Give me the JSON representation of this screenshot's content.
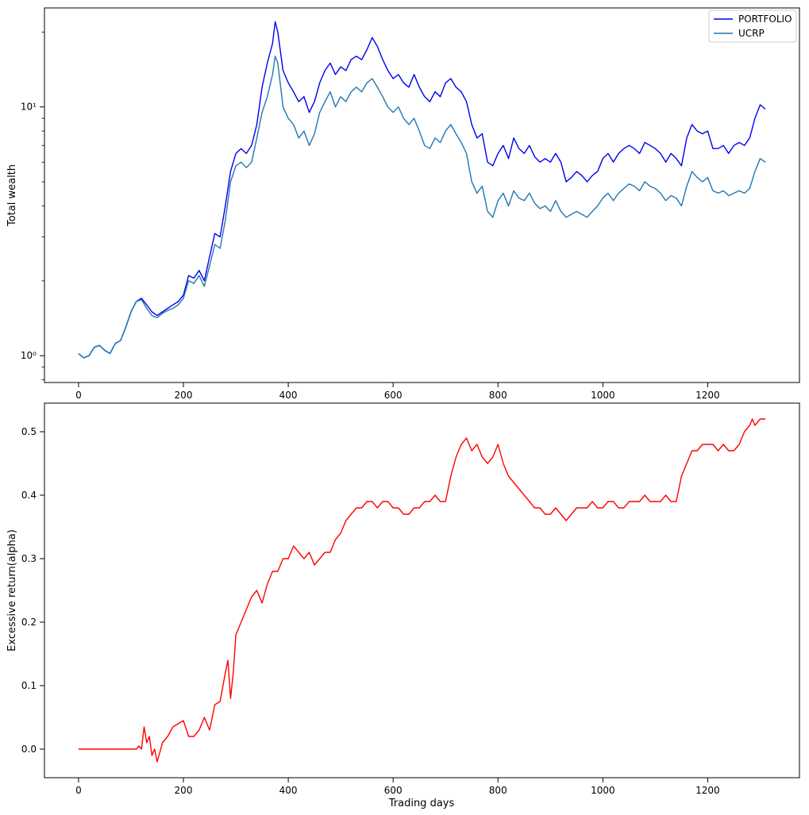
{
  "colors": {
    "portfolio": "#0000ee",
    "ucrp": "#1f77b4",
    "alpha": "#ff0000",
    "axes": "#000000"
  },
  "chart_data": [
    {
      "type": "line",
      "yscale": "log",
      "xlabel": "",
      "ylabel": "Total wealth",
      "xlim": [
        -65,
        1375
      ],
      "ylim": [
        0.78,
        25
      ],
      "x_ticks": [
        0,
        200,
        400,
        600,
        800,
        1000,
        1200
      ],
      "y_ticks": [
        1,
        10
      ],
      "y_tick_labels": [
        "10⁰",
        "10¹"
      ],
      "legend": {
        "position": "top-right"
      },
      "grid": false,
      "series": [
        {
          "name": "PORTFOLIO",
          "color": "#0000ee",
          "x": [
            0,
            10,
            20,
            30,
            40,
            50,
            60,
            70,
            80,
            90,
            100,
            110,
            120,
            130,
            140,
            150,
            160,
            170,
            180,
            190,
            200,
            210,
            220,
            230,
            240,
            250,
            260,
            270,
            280,
            290,
            300,
            310,
            320,
            330,
            340,
            350,
            360,
            370,
            375,
            380,
            390,
            400,
            410,
            420,
            430,
            440,
            450,
            460,
            470,
            480,
            490,
            500,
            510,
            520,
            530,
            540,
            550,
            560,
            570,
            580,
            590,
            600,
            610,
            620,
            630,
            640,
            650,
            660,
            670,
            680,
            690,
            700,
            710,
            720,
            730,
            740,
            750,
            760,
            770,
            780,
            790,
            800,
            810,
            820,
            830,
            840,
            850,
            860,
            870,
            880,
            890,
            900,
            910,
            920,
            930,
            940,
            950,
            960,
            970,
            980,
            990,
            1000,
            1010,
            1020,
            1030,
            1040,
            1050,
            1060,
            1070,
            1080,
            1090,
            1100,
            1110,
            1120,
            1130,
            1140,
            1150,
            1160,
            1170,
            1180,
            1190,
            1200,
            1210,
            1220,
            1230,
            1240,
            1250,
            1260,
            1270,
            1280,
            1290,
            1300,
            1310
          ],
          "values": [
            1.02,
            0.98,
            1.0,
            1.08,
            1.1,
            1.05,
            1.02,
            1.12,
            1.15,
            1.3,
            1.5,
            1.65,
            1.7,
            1.6,
            1.5,
            1.45,
            1.5,
            1.55,
            1.6,
            1.65,
            1.75,
            2.1,
            2.05,
            2.2,
            2.0,
            2.5,
            3.1,
            3.0,
            4.0,
            5.5,
            6.5,
            6.8,
            6.5,
            7.0,
            8.5,
            12.0,
            15.0,
            18.0,
            22.0,
            20.0,
            14.0,
            12.5,
            11.5,
            10.5,
            11.0,
            9.5,
            10.5,
            12.5,
            14.0,
            15.0,
            13.5,
            14.5,
            14.0,
            15.5,
            16.0,
            15.5,
            17.0,
            19.0,
            17.5,
            15.5,
            14.0,
            13.0,
            13.5,
            12.5,
            12.0,
            13.5,
            12.0,
            11.0,
            10.5,
            11.5,
            11.0,
            12.5,
            13.0,
            12.0,
            11.5,
            10.5,
            8.5,
            7.5,
            7.8,
            6.0,
            5.8,
            6.5,
            7.0,
            6.2,
            7.5,
            6.8,
            6.5,
            7.0,
            6.3,
            6.0,
            6.2,
            6.0,
            6.5,
            6.0,
            5.0,
            5.2,
            5.5,
            5.3,
            5.0,
            5.3,
            5.5,
            6.2,
            6.5,
            6.0,
            6.5,
            6.8,
            7.0,
            6.8,
            6.5,
            7.2,
            7.0,
            6.8,
            6.5,
            6.0,
            6.5,
            6.2,
            5.8,
            7.5,
            8.5,
            8.0,
            7.8,
            8.0,
            6.8,
            6.8,
            7.0,
            6.5,
            7.0,
            7.2,
            7.0,
            7.5,
            9.0,
            10.2,
            9.8
          ]
        },
        {
          "name": "UCRP",
          "color": "#1f77b4",
          "x": [
            0,
            10,
            20,
            30,
            40,
            50,
            60,
            70,
            80,
            90,
            100,
            110,
            120,
            130,
            140,
            150,
            160,
            170,
            180,
            190,
            200,
            210,
            220,
            230,
            240,
            250,
            260,
            270,
            280,
            290,
            300,
            310,
            320,
            330,
            340,
            350,
            360,
            370,
            375,
            380,
            390,
            400,
            410,
            420,
            430,
            440,
            450,
            460,
            470,
            480,
            490,
            500,
            510,
            520,
            530,
            540,
            550,
            560,
            570,
            580,
            590,
            600,
            610,
            620,
            630,
            640,
            650,
            660,
            670,
            680,
            690,
            700,
            710,
            720,
            730,
            740,
            750,
            760,
            770,
            780,
            790,
            800,
            810,
            820,
            830,
            840,
            850,
            860,
            870,
            880,
            890,
            900,
            910,
            920,
            930,
            940,
            950,
            960,
            970,
            980,
            990,
            1000,
            1010,
            1020,
            1030,
            1040,
            1050,
            1060,
            1070,
            1080,
            1090,
            1100,
            1110,
            1120,
            1130,
            1140,
            1150,
            1160,
            1170,
            1180,
            1190,
            1200,
            1210,
            1220,
            1230,
            1240,
            1250,
            1260,
            1270,
            1280,
            1290,
            1300,
            1310
          ],
          "values": [
            1.02,
            0.98,
            1.0,
            1.08,
            1.1,
            1.05,
            1.02,
            1.12,
            1.15,
            1.3,
            1.5,
            1.65,
            1.68,
            1.55,
            1.45,
            1.42,
            1.48,
            1.52,
            1.55,
            1.6,
            1.7,
            2.0,
            1.95,
            2.1,
            1.9,
            2.3,
            2.8,
            2.7,
            3.5,
            5.0,
            5.8,
            6.0,
            5.7,
            6.0,
            7.5,
            9.5,
            11.0,
            13.5,
            16.0,
            15.0,
            10.0,
            9.0,
            8.5,
            7.5,
            8.0,
            7.0,
            7.8,
            9.5,
            10.5,
            11.5,
            10.0,
            11.0,
            10.5,
            11.5,
            12.0,
            11.5,
            12.5,
            13.0,
            12.0,
            11.0,
            10.0,
            9.5,
            10.0,
            9.0,
            8.5,
            9.0,
            8.0,
            7.0,
            6.8,
            7.5,
            7.2,
            8.0,
            8.5,
            7.8,
            7.2,
            6.5,
            5.0,
            4.5,
            4.8,
            3.8,
            3.6,
            4.2,
            4.5,
            4.0,
            4.6,
            4.3,
            4.2,
            4.5,
            4.1,
            3.9,
            4.0,
            3.8,
            4.2,
            3.8,
            3.6,
            3.7,
            3.8,
            3.7,
            3.6,
            3.8,
            4.0,
            4.3,
            4.5,
            4.2,
            4.5,
            4.7,
            4.9,
            4.8,
            4.6,
            5.0,
            4.8,
            4.7,
            4.5,
            4.2,
            4.4,
            4.3,
            4.0,
            4.8,
            5.5,
            5.2,
            5.0,
            5.2,
            4.6,
            4.5,
            4.6,
            4.4,
            4.5,
            4.6,
            4.5,
            4.7,
            5.5,
            6.2,
            6.0
          ]
        }
      ]
    },
    {
      "type": "line",
      "xlabel": "Trading days",
      "ylabel": "Excessive return(alpha)",
      "xlim": [
        -65,
        1375
      ],
      "ylim": [
        -0.045,
        0.545
      ],
      "x_ticks": [
        0,
        200,
        400,
        600,
        800,
        1000,
        1200
      ],
      "y_ticks": [
        0.0,
        0.1,
        0.2,
        0.3,
        0.4,
        0.5
      ],
      "y_tick_labels": [
        "0.0",
        "0.1",
        "0.2",
        "0.3",
        "0.4",
        "0.5"
      ],
      "grid": false,
      "series": [
        {
          "color": "#ff0000",
          "x": [
            0,
            50,
            100,
            110,
            115,
            120,
            125,
            130,
            135,
            140,
            145,
            150,
            160,
            170,
            180,
            190,
            200,
            210,
            220,
            230,
            240,
            250,
            260,
            270,
            280,
            285,
            290,
            295,
            300,
            310,
            320,
            330,
            340,
            350,
            360,
            370,
            380,
            390,
            400,
            410,
            420,
            430,
            440,
            450,
            460,
            470,
            480,
            490,
            500,
            510,
            520,
            530,
            540,
            550,
            560,
            570,
            580,
            590,
            600,
            610,
            620,
            630,
            640,
            650,
            660,
            670,
            680,
            690,
            700,
            710,
            720,
            730,
            740,
            750,
            760,
            770,
            780,
            790,
            800,
            810,
            820,
            830,
            840,
            850,
            860,
            870,
            880,
            890,
            900,
            910,
            920,
            930,
            940,
            950,
            960,
            970,
            980,
            990,
            1000,
            1010,
            1020,
            1030,
            1040,
            1050,
            1060,
            1070,
            1080,
            1090,
            1100,
            1110,
            1120,
            1130,
            1140,
            1150,
            1160,
            1170,
            1180,
            1190,
            1200,
            1210,
            1220,
            1230,
            1240,
            1250,
            1260,
            1270,
            1280,
            1285,
            1290,
            1300,
            1310
          ],
          "values": [
            0.0,
            0.0,
            0.0,
            0.0,
            0.005,
            0.0,
            0.035,
            0.01,
            0.02,
            -0.01,
            0.0,
            -0.02,
            0.01,
            0.02,
            0.035,
            0.04,
            0.045,
            0.02,
            0.02,
            0.03,
            0.05,
            0.03,
            0.07,
            0.075,
            0.12,
            0.14,
            0.08,
            0.12,
            0.18,
            0.2,
            0.22,
            0.24,
            0.25,
            0.23,
            0.26,
            0.28,
            0.28,
            0.3,
            0.3,
            0.32,
            0.31,
            0.3,
            0.31,
            0.29,
            0.3,
            0.31,
            0.31,
            0.33,
            0.34,
            0.36,
            0.37,
            0.38,
            0.38,
            0.39,
            0.39,
            0.38,
            0.39,
            0.39,
            0.38,
            0.38,
            0.37,
            0.37,
            0.38,
            0.38,
            0.39,
            0.39,
            0.4,
            0.39,
            0.39,
            0.43,
            0.46,
            0.48,
            0.49,
            0.47,
            0.48,
            0.46,
            0.45,
            0.46,
            0.48,
            0.45,
            0.43,
            0.42,
            0.41,
            0.4,
            0.39,
            0.38,
            0.38,
            0.37,
            0.37,
            0.38,
            0.37,
            0.36,
            0.37,
            0.38,
            0.38,
            0.38,
            0.39,
            0.38,
            0.38,
            0.39,
            0.39,
            0.38,
            0.38,
            0.39,
            0.39,
            0.39,
            0.4,
            0.39,
            0.39,
            0.39,
            0.4,
            0.39,
            0.39,
            0.43,
            0.45,
            0.47,
            0.47,
            0.48,
            0.48,
            0.48,
            0.47,
            0.48,
            0.47,
            0.47,
            0.48,
            0.5,
            0.51,
            0.52,
            0.51,
            0.52,
            0.52
          ]
        }
      ]
    }
  ]
}
